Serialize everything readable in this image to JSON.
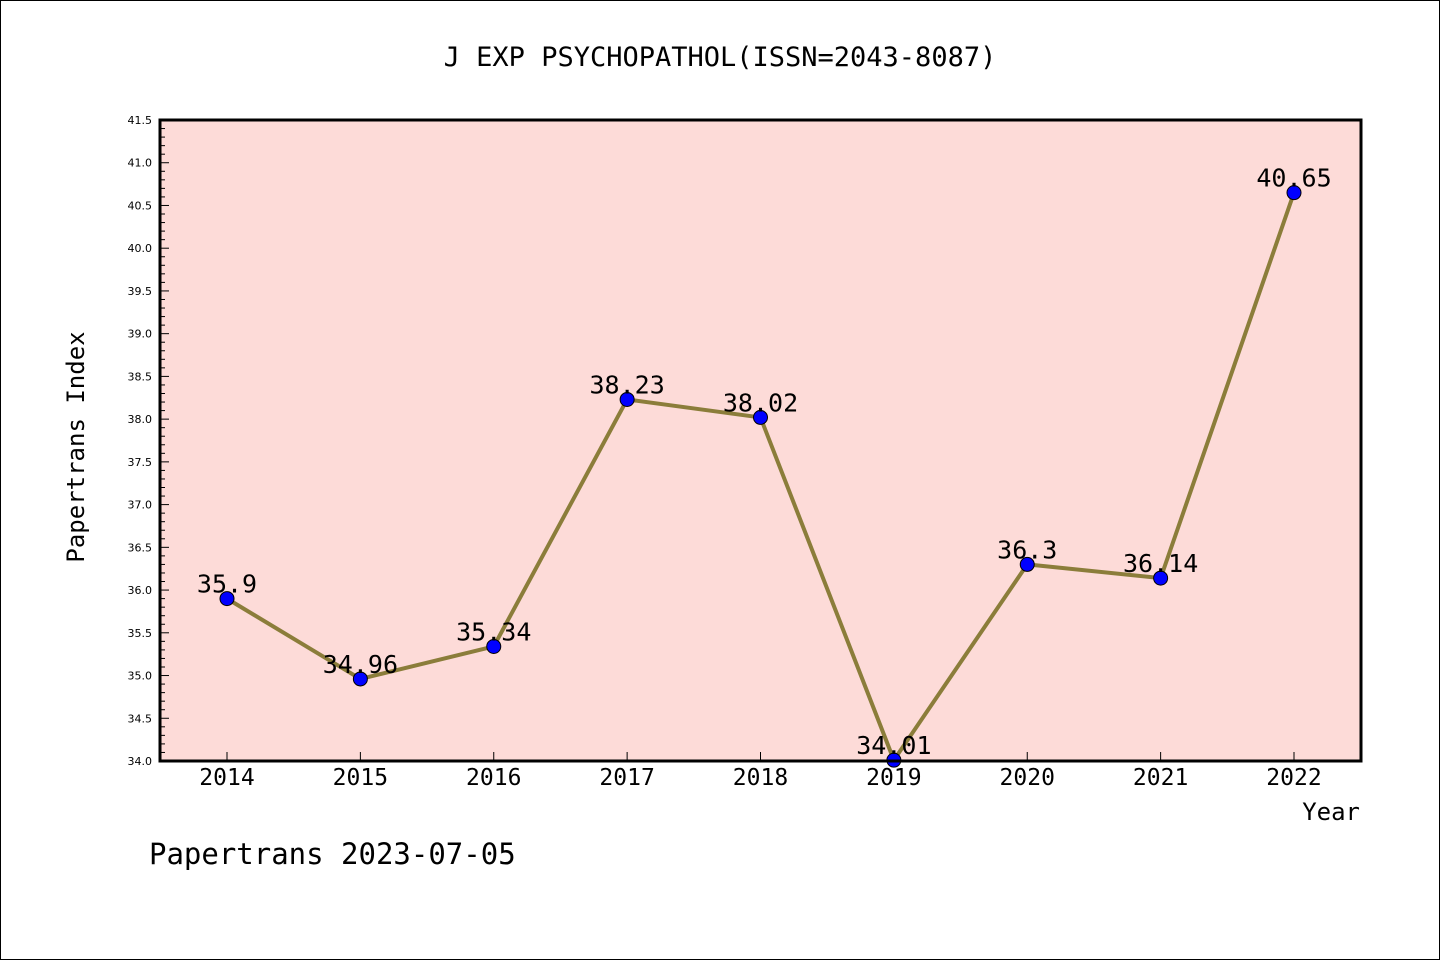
{
  "chart_data": {
    "type": "line",
    "title": "J EXP PSYCHOPATHOL(ISSN=2043-8087)",
    "xlabel": "Year",
    "ylabel": "Papertrans Index",
    "categories": [
      "2014",
      "2015",
      "2016",
      "2017",
      "2018",
      "2019",
      "2020",
      "2021",
      "2022"
    ],
    "series": [
      {
        "values": [
          35.9,
          34.96,
          35.34,
          38.23,
          38.02,
          34.01,
          36.3,
          36.14,
          40.65
        ],
        "labels": [
          "35.9",
          "34.96",
          "35.34",
          "38.23",
          "38.02",
          "34.01",
          "36.3",
          "36.14",
          "40.65"
        ]
      }
    ],
    "ylim": [
      34.0,
      41.5
    ],
    "yticks": [
      "34.0",
      "34.5",
      "35.0",
      "35.5",
      "36.0",
      "36.5",
      "37.0",
      "37.5",
      "38.0",
      "38.5",
      "39.0",
      "39.5",
      "40.0",
      "40.5",
      "41.0",
      "41.5"
    ],
    "grid": false,
    "colors": {
      "plot_background": "#fddbd8",
      "line": "#8b7d3a",
      "marker": "#0000ff"
    }
  },
  "footer": "Papertrans 2023-07-05"
}
